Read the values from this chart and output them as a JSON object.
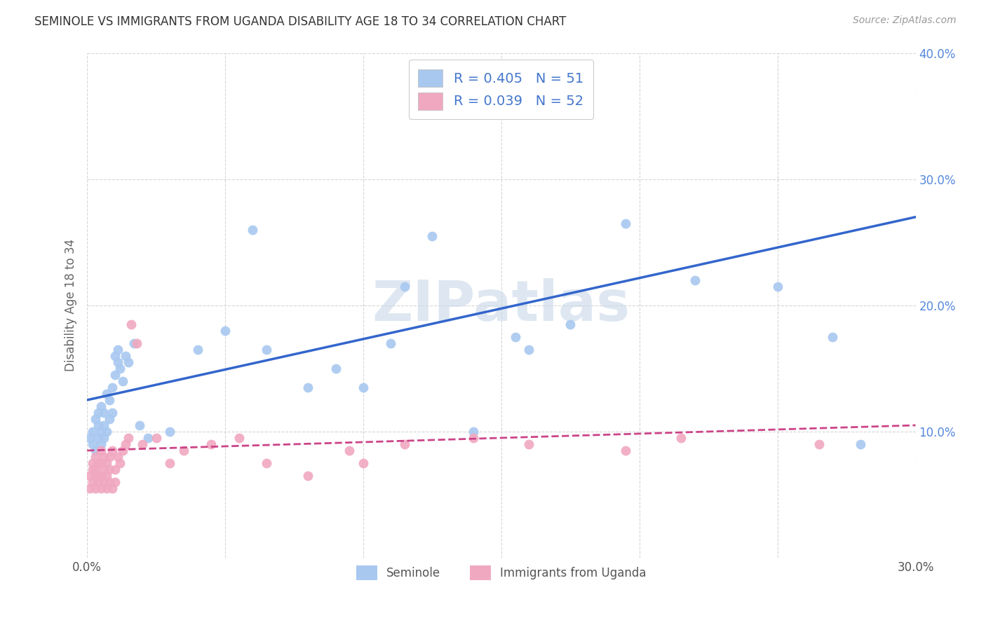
{
  "title": "SEMINOLE VS IMMIGRANTS FROM UGANDA DISABILITY AGE 18 TO 34 CORRELATION CHART",
  "source": "Source: ZipAtlas.com",
  "ylabel": "Disability Age 18 to 34",
  "xlim": [
    0.0,
    0.3
  ],
  "ylim": [
    0.0,
    0.4
  ],
  "xticks": [
    0.0,
    0.05,
    0.1,
    0.15,
    0.2,
    0.25,
    0.3
  ],
  "yticks": [
    0.0,
    0.1,
    0.2,
    0.3,
    0.4
  ],
  "legend_labels": [
    "Seminole",
    "Immigrants from Uganda"
  ],
  "R_seminole": 0.405,
  "N_seminole": 51,
  "R_uganda": 0.039,
  "N_uganda": 52,
  "color_seminole": "#a8c8f0",
  "color_uganda": "#f0a8c0",
  "line_color_seminole": "#3366cc",
  "line_color_uganda": "#cc4488",
  "watermark": "ZIPatlas",
  "background_color": "#ffffff",
  "grid_color": "#cccccc",
  "seminole_x": [
    0.001,
    0.002,
    0.002,
    0.003,
    0.003,
    0.004,
    0.004,
    0.004,
    0.005,
    0.005,
    0.005,
    0.006,
    0.006,
    0.006,
    0.007,
    0.007,
    0.008,
    0.008,
    0.009,
    0.009,
    0.01,
    0.01,
    0.011,
    0.011,
    0.012,
    0.013,
    0.014,
    0.015,
    0.017,
    0.019,
    0.022,
    0.03,
    0.04,
    0.05,
    0.06,
    0.065,
    0.08,
    0.09,
    0.1,
    0.11,
    0.115,
    0.125,
    0.14,
    0.155,
    0.16,
    0.175,
    0.195,
    0.22,
    0.25,
    0.27,
    0.28
  ],
  "seminole_y": [
    0.095,
    0.09,
    0.1,
    0.085,
    0.11,
    0.095,
    0.105,
    0.115,
    0.09,
    0.1,
    0.12,
    0.095,
    0.105,
    0.115,
    0.1,
    0.13,
    0.11,
    0.125,
    0.115,
    0.135,
    0.145,
    0.16,
    0.155,
    0.165,
    0.15,
    0.14,
    0.16,
    0.155,
    0.17,
    0.105,
    0.095,
    0.1,
    0.165,
    0.18,
    0.26,
    0.165,
    0.135,
    0.15,
    0.135,
    0.17,
    0.215,
    0.255,
    0.1,
    0.175,
    0.165,
    0.185,
    0.265,
    0.22,
    0.215,
    0.175,
    0.09
  ],
  "uganda_x": [
    0.001,
    0.001,
    0.002,
    0.002,
    0.002,
    0.003,
    0.003,
    0.003,
    0.003,
    0.004,
    0.004,
    0.004,
    0.005,
    0.005,
    0.005,
    0.005,
    0.006,
    0.006,
    0.006,
    0.007,
    0.007,
    0.007,
    0.008,
    0.008,
    0.008,
    0.009,
    0.009,
    0.01,
    0.01,
    0.011,
    0.012,
    0.013,
    0.014,
    0.015,
    0.016,
    0.018,
    0.02,
    0.025,
    0.03,
    0.035,
    0.045,
    0.055,
    0.065,
    0.08,
    0.095,
    0.1,
    0.115,
    0.14,
    0.16,
    0.195,
    0.215,
    0.265
  ],
  "uganda_y": [
    0.055,
    0.065,
    0.06,
    0.07,
    0.075,
    0.055,
    0.065,
    0.07,
    0.08,
    0.06,
    0.065,
    0.075,
    0.055,
    0.065,
    0.075,
    0.085,
    0.06,
    0.07,
    0.08,
    0.055,
    0.065,
    0.075,
    0.06,
    0.07,
    0.08,
    0.055,
    0.085,
    0.06,
    0.07,
    0.08,
    0.075,
    0.085,
    0.09,
    0.095,
    0.185,
    0.17,
    0.09,
    0.095,
    0.075,
    0.085,
    0.09,
    0.095,
    0.075,
    0.065,
    0.085,
    0.075,
    0.09,
    0.095,
    0.09,
    0.085,
    0.095,
    0.09
  ]
}
